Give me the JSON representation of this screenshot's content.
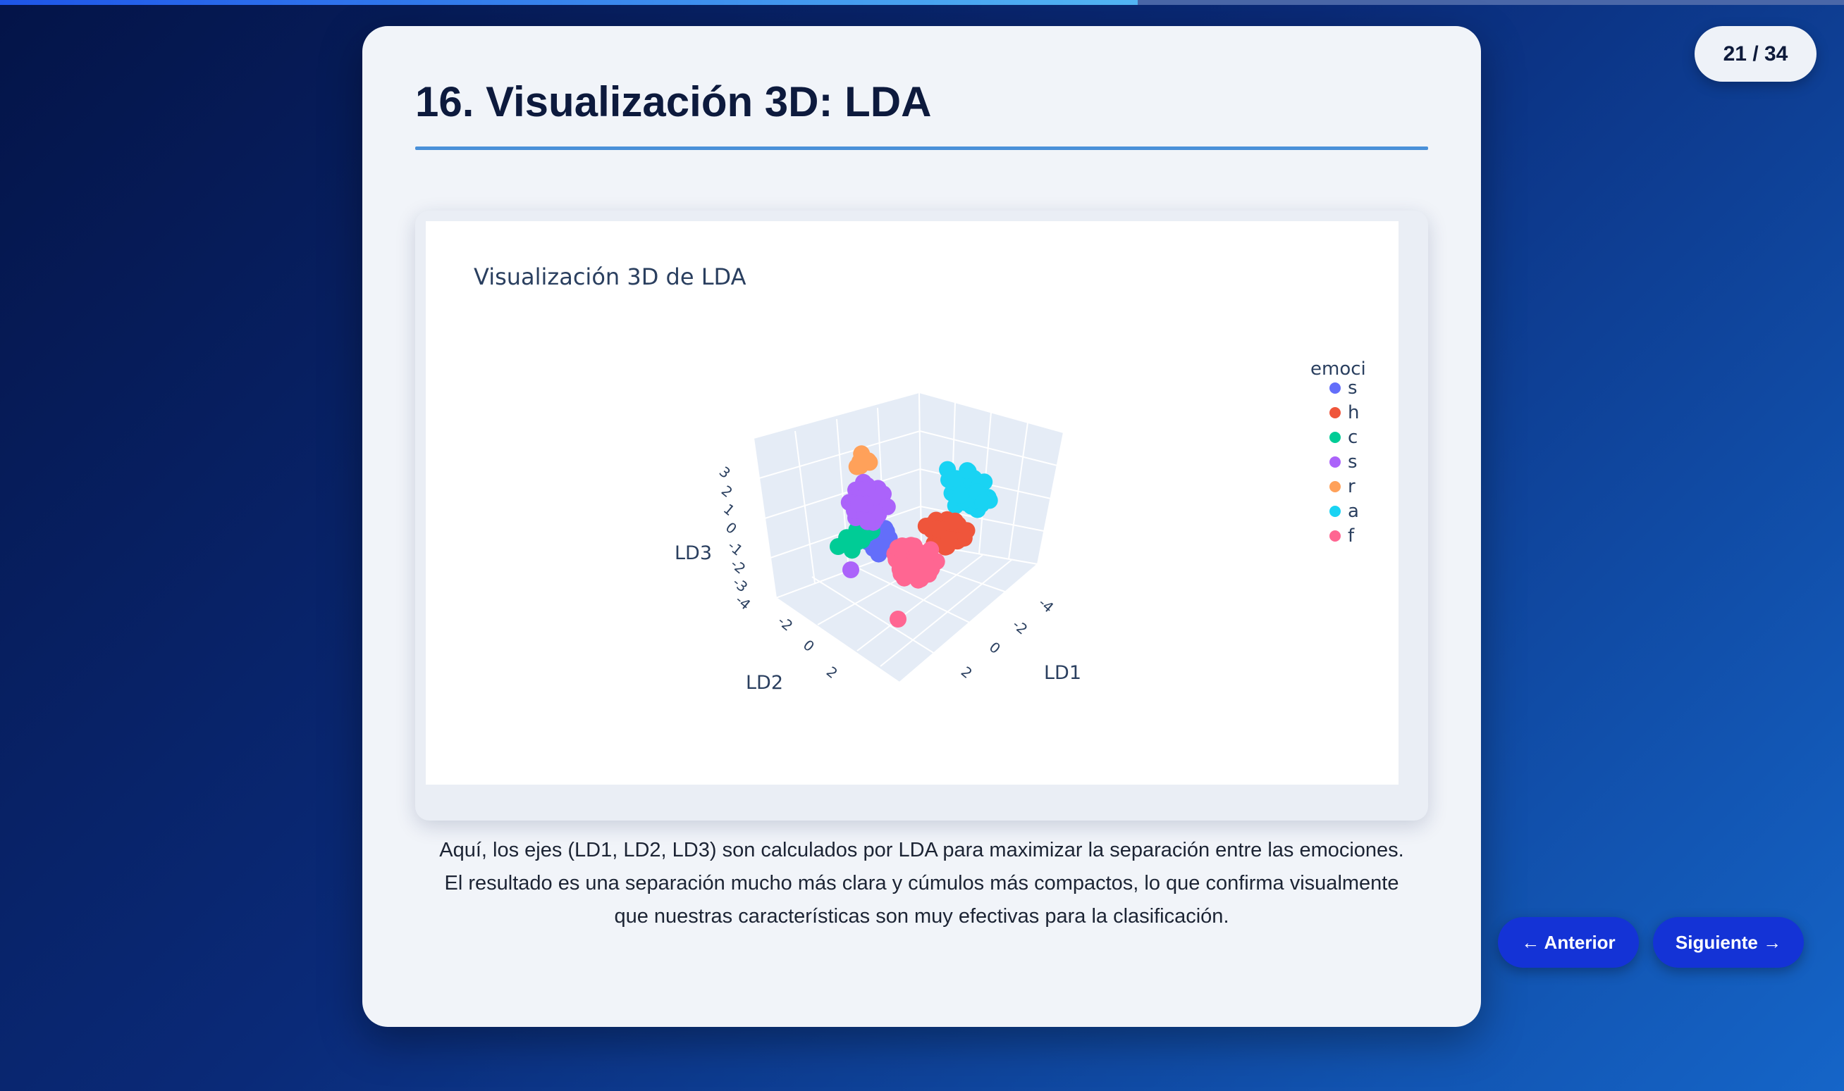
{
  "progress": {
    "fraction": 0.617
  },
  "counter": {
    "text": "21 / 34"
  },
  "slide": {
    "title": "16. Visualización 3D: LDA",
    "caption": "Aquí, los ejes (LD1, LD2, LD3) son calculados por LDA para maximizar la separación entre las emociones. El resultado es una separación mucho más clara y cúmulos más compactos, lo que confirma visualmente que nuestras características son muy efectivas para la clasificación."
  },
  "nav": {
    "prev_label": "← Anterior",
    "next_label": "Siguiente →"
  },
  "chart_data": {
    "type": "scatter",
    "title": "Visualización 3D de LDA",
    "axes": {
      "x": {
        "label": "LD1",
        "ticks": [
          "-4",
          "-2",
          "0",
          "2"
        ]
      },
      "y": {
        "label": "LD2",
        "ticks": [
          "-2",
          "0",
          "2"
        ]
      },
      "z": {
        "label": "LD3",
        "ticks": [
          "3",
          "2",
          "1",
          "0",
          "-1",
          "-2",
          "-3",
          "-4"
        ]
      }
    },
    "legend": {
      "title": "emoci",
      "placement": "right",
      "entries": [
        {
          "label": "s",
          "color": "#636efa"
        },
        {
          "label": "h",
          "color": "#ef553b"
        },
        {
          "label": "c",
          "color": "#00cc96"
        },
        {
          "label": "s",
          "color": "#ab63fa"
        },
        {
          "label": "r",
          "color": "#ffa15a"
        },
        {
          "label": "a",
          "color": "#19d3f3"
        },
        {
          "label": "f",
          "color": "#ff6692"
        }
      ]
    }
  }
}
